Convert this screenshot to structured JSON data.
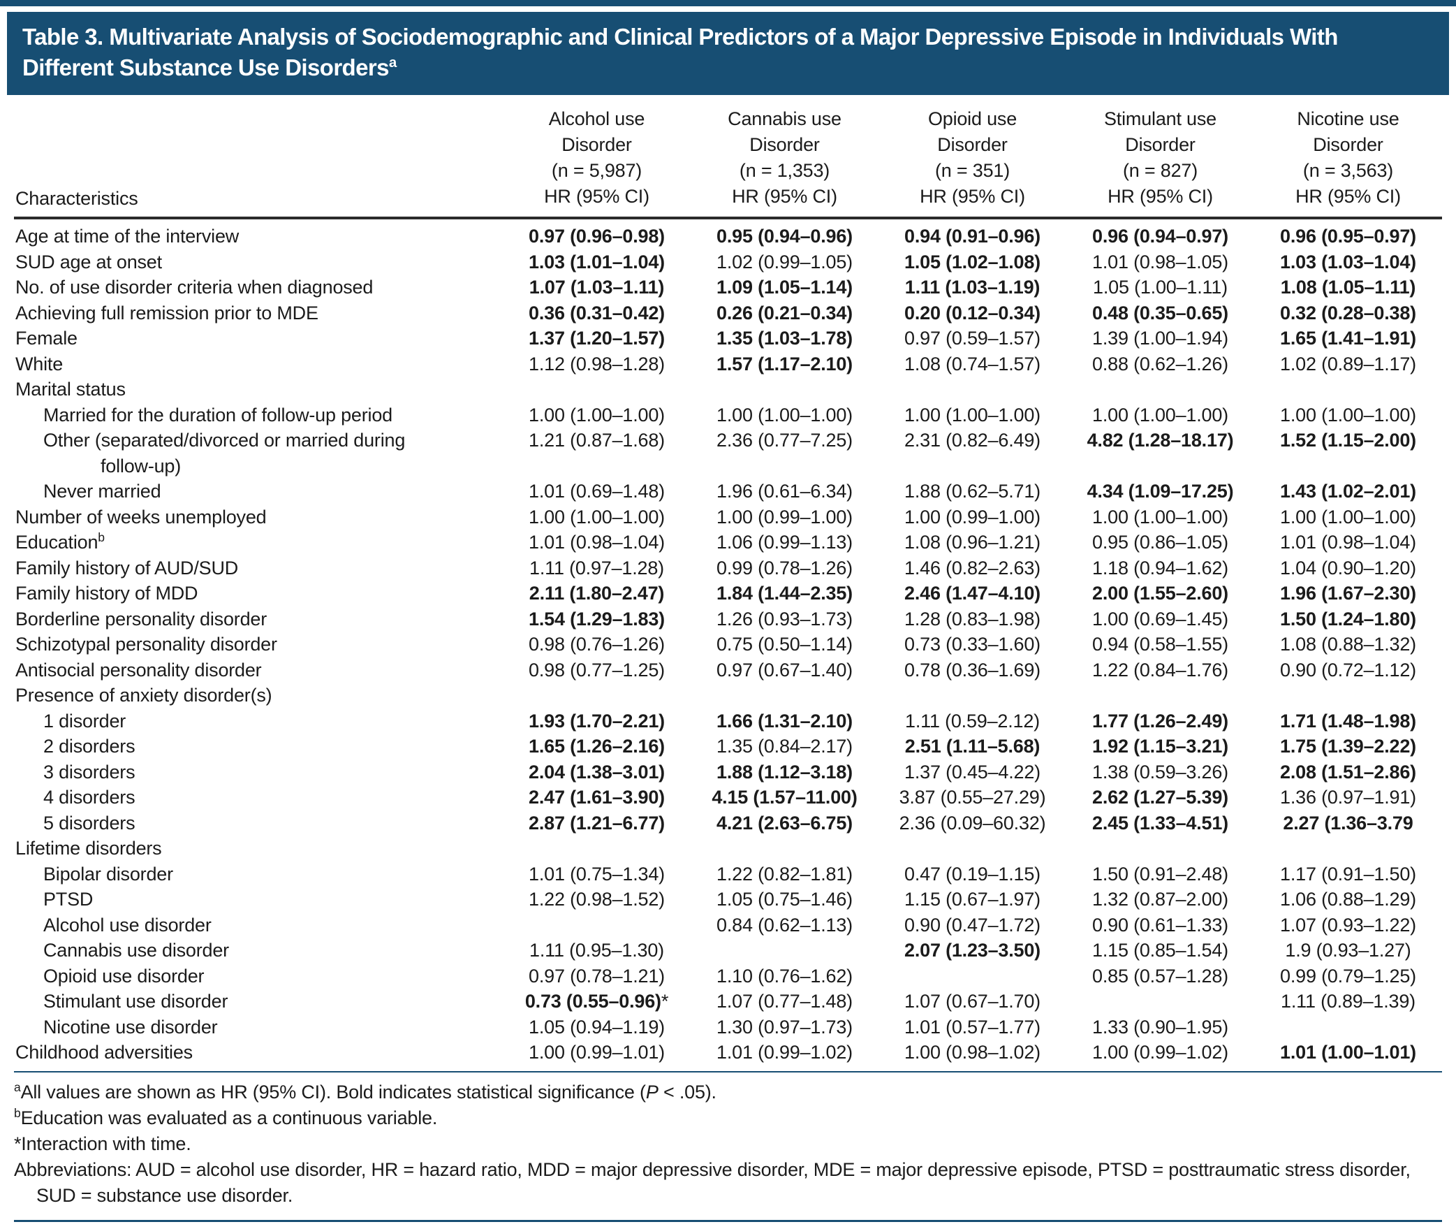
{
  "title": {
    "text": "Table 3. Multivariate Analysis of Sociodemographic and Clinical Predictors of a Major Depressive Episode in Individuals With Different Substance Use Disorders",
    "superscript": "a"
  },
  "table": {
    "characteristics_header": "Characteristics",
    "measure_label": "HR (95% CI)",
    "columns": [
      {
        "line1": "Alcohol use",
        "line2": "Disorder",
        "n": "(n = 5,987)",
        "measure": "HR (95% CI)"
      },
      {
        "line1": "Cannabis use",
        "line2": "Disorder",
        "n": "(n = 1,353)",
        "measure": "HR (95% CI)"
      },
      {
        "line1": "Opioid use",
        "line2": "Disorder",
        "n": "(n = 351)",
        "measure": "HR (95% CI)"
      },
      {
        "line1": "Stimulant use",
        "line2": "Disorder",
        "n": "(n = 827)",
        "measure": "HR (95% CI)"
      },
      {
        "line1": "Nicotine use",
        "line2": "Disorder",
        "n": "(n = 3,563)",
        "measure": "HR (95% CI)"
      }
    ],
    "rows": [
      {
        "label": "Age at time of the interview",
        "indent": 0,
        "cells": [
          {
            "t": "0.97 (0.96–0.98)",
            "b": true
          },
          {
            "t": "0.95 (0.94–0.96)",
            "b": true
          },
          {
            "t": "0.94 (0.91–0.96)",
            "b": true
          },
          {
            "t": "0.96 (0.94–0.97)",
            "b": true
          },
          {
            "t": "0.96 (0.95–0.97)",
            "b": true
          }
        ]
      },
      {
        "label": "SUD age at onset",
        "indent": 0,
        "cells": [
          {
            "t": "1.03 (1.01–1.04)",
            "b": true
          },
          {
            "t": "1.02 (0.99–1.05)",
            "b": false
          },
          {
            "t": "1.05 (1.02–1.08)",
            "b": true
          },
          {
            "t": "1.01 (0.98–1.05)",
            "b": false
          },
          {
            "t": "1.03 (1.03–1.04)",
            "b": true
          }
        ]
      },
      {
        "label": "No. of use disorder criteria when diagnosed",
        "indent": 0,
        "cells": [
          {
            "t": "1.07 (1.03–1.11)",
            "b": true
          },
          {
            "t": "1.09 (1.05–1.14)",
            "b": true
          },
          {
            "t": "1.11 (1.03–1.19)",
            "b": true
          },
          {
            "t": "1.05 (1.00–1.11)",
            "b": false
          },
          {
            "t": "1.08 (1.05–1.11)",
            "b": true
          }
        ]
      },
      {
        "label": "Achieving full remission prior to MDE",
        "indent": 0,
        "cells": [
          {
            "t": "0.36 (0.31–0.42)",
            "b": true
          },
          {
            "t": "0.26 (0.21–0.34)",
            "b": true
          },
          {
            "t": "0.20 (0.12–0.34)",
            "b": true
          },
          {
            "t": "0.48 (0.35–0.65)",
            "b": true
          },
          {
            "t": "0.32 (0.28–0.38)",
            "b": true
          }
        ]
      },
      {
        "label": "Female",
        "indent": 0,
        "cells": [
          {
            "t": "1.37 (1.20–1.57)",
            "b": true
          },
          {
            "t": "1.35 (1.03–1.78)",
            "b": true
          },
          {
            "t": "0.97 (0.59–1.57)",
            "b": false
          },
          {
            "t": "1.39 (1.00–1.94)",
            "b": false
          },
          {
            "t": "1.65 (1.41–1.91)",
            "b": true
          }
        ]
      },
      {
        "label": "White",
        "indent": 0,
        "cells": [
          {
            "t": "1.12 (0.98–1.28)",
            "b": false
          },
          {
            "t": "1.57 (1.17–2.10)",
            "b": true
          },
          {
            "t": "1.08 (0.74–1.57)",
            "b": false
          },
          {
            "t": "0.88 (0.62–1.26)",
            "b": false
          },
          {
            "t": "1.02 (0.89–1.17)",
            "b": false
          }
        ]
      },
      {
        "label": "Marital status",
        "indent": 0,
        "section": true,
        "cells": []
      },
      {
        "label": "Married for the duration of follow-up period",
        "indent": 1,
        "cells": [
          {
            "t": "1.00 (1.00–1.00)",
            "b": false
          },
          {
            "t": "1.00 (1.00–1.00)",
            "b": false
          },
          {
            "t": "1.00 (1.00–1.00)",
            "b": false
          },
          {
            "t": "1.00 (1.00–1.00)",
            "b": false
          },
          {
            "t": "1.00 (1.00–1.00)",
            "b": false
          }
        ]
      },
      {
        "label": "Other (separated/divorced or married during",
        "label_line2": "follow-up)",
        "indent": 1,
        "cells": [
          {
            "t": "1.21 (0.87–1.68)",
            "b": false
          },
          {
            "t": "2.36 (0.77–7.25)",
            "b": false
          },
          {
            "t": "2.31 (0.82–6.49)",
            "b": false
          },
          {
            "t": "4.82 (1.28–18.17)",
            "b": true
          },
          {
            "t": "1.52 (1.15–2.00)",
            "b": true
          }
        ]
      },
      {
        "label": "Never married",
        "indent": 1,
        "cells": [
          {
            "t": "1.01 (0.69–1.48)",
            "b": false
          },
          {
            "t": "1.96 (0.61–6.34)",
            "b": false
          },
          {
            "t": "1.88 (0.62–5.71)",
            "b": false
          },
          {
            "t": "4.34 (1.09–17.25)",
            "b": true
          },
          {
            "t": "1.43 (1.02–2.01)",
            "b": true
          }
        ]
      },
      {
        "label": "Number of weeks unemployed",
        "indent": 0,
        "cells": [
          {
            "t": "1.00 (1.00–1.00)",
            "b": false
          },
          {
            "t": "1.00 (0.99–1.00)",
            "b": false
          },
          {
            "t": "1.00 (0.99–1.00)",
            "b": false
          },
          {
            "t": "1.00 (1.00–1.00)",
            "b": false
          },
          {
            "t": "1.00 (1.00–1.00)",
            "b": false
          }
        ]
      },
      {
        "label": "Education",
        "label_sup": "b",
        "indent": 0,
        "cells": [
          {
            "t": "1.01 (0.98–1.04)",
            "b": false
          },
          {
            "t": "1.06 (0.99–1.13)",
            "b": false
          },
          {
            "t": "1.08 (0.96–1.21)",
            "b": false
          },
          {
            "t": "0.95 (0.86–1.05)",
            "b": false
          },
          {
            "t": "1.01 (0.98–1.04)",
            "b": false
          }
        ]
      },
      {
        "label": "Family history of AUD/SUD",
        "indent": 0,
        "cells": [
          {
            "t": "1.11 (0.97–1.28)",
            "b": false
          },
          {
            "t": "0.99 (0.78–1.26)",
            "b": false
          },
          {
            "t": "1.46 (0.82–2.63)",
            "b": false
          },
          {
            "t": "1.18 (0.94–1.62)",
            "b": false
          },
          {
            "t": "1.04 (0.90–1.20)",
            "b": false
          }
        ]
      },
      {
        "label": "Family history of MDD",
        "indent": 0,
        "cells": [
          {
            "t": "2.11 (1.80–2.47)",
            "b": true
          },
          {
            "t": "1.84 (1.44–2.35)",
            "b": true
          },
          {
            "t": "2.46 (1.47–4.10)",
            "b": true
          },
          {
            "t": "2.00 (1.55–2.60)",
            "b": true
          },
          {
            "t": "1.96 (1.67–2.30)",
            "b": true
          }
        ]
      },
      {
        "label": "Borderline personality disorder",
        "indent": 0,
        "cells": [
          {
            "t": "1.54 (1.29–1.83)",
            "b": true
          },
          {
            "t": "1.26 (0.93–1.73)",
            "b": false
          },
          {
            "t": "1.28 (0.83–1.98)",
            "b": false
          },
          {
            "t": "1.00 (0.69–1.45)",
            "b": false
          },
          {
            "t": "1.50 (1.24–1.80)",
            "b": true
          }
        ]
      },
      {
        "label": "Schizotypal personality disorder",
        "indent": 0,
        "cells": [
          {
            "t": "0.98 (0.76–1.26)",
            "b": false
          },
          {
            "t": "0.75 (0.50–1.14)",
            "b": false
          },
          {
            "t": "0.73 (0.33–1.60)",
            "b": false
          },
          {
            "t": "0.94 (0.58–1.55)",
            "b": false
          },
          {
            "t": "1.08 (0.88–1.32)",
            "b": false
          }
        ]
      },
      {
        "label": "Antisocial personality disorder",
        "indent": 0,
        "cells": [
          {
            "t": "0.98 (0.77–1.25)",
            "b": false
          },
          {
            "t": "0.97 (0.67–1.40)",
            "b": false
          },
          {
            "t": "0.78 (0.36–1.69)",
            "b": false
          },
          {
            "t": "1.22 (0.84–1.76)",
            "b": false
          },
          {
            "t": "0.90 (0.72–1.12)",
            "b": false
          }
        ]
      },
      {
        "label": "Presence of anxiety disorder(s)",
        "indent": 0,
        "section": true,
        "cells": []
      },
      {
        "label": "1 disorder",
        "indent": 1,
        "cells": [
          {
            "t": "1.93 (1.70–2.21)",
            "b": true
          },
          {
            "t": "1.66 (1.31–2.10)",
            "b": true
          },
          {
            "t": "1.11 (0.59–2.12)",
            "b": false
          },
          {
            "t": "1.77 (1.26–2.49)",
            "b": true
          },
          {
            "t": "1.71 (1.48–1.98)",
            "b": true
          }
        ]
      },
      {
        "label": "2 disorders",
        "indent": 1,
        "cells": [
          {
            "t": "1.65 (1.26–2.16)",
            "b": true
          },
          {
            "t": "1.35 (0.84–2.17)",
            "b": false
          },
          {
            "t": "2.51 (1.11–5.68)",
            "b": true
          },
          {
            "t": "1.92 (1.15–3.21)",
            "b": true
          },
          {
            "t": "1.75 (1.39–2.22)",
            "b": true
          }
        ]
      },
      {
        "label": "3 disorders",
        "indent": 1,
        "cells": [
          {
            "t": "2.04 (1.38–3.01)",
            "b": true
          },
          {
            "t": "1.88 (1.12–3.18)",
            "b": true
          },
          {
            "t": "1.37 (0.45–4.22)",
            "b": false
          },
          {
            "t": "1.38 (0.59–3.26)",
            "b": false
          },
          {
            "t": "2.08 (1.51–2.86)",
            "b": true
          }
        ]
      },
      {
        "label": "4 disorders",
        "indent": 1,
        "cells": [
          {
            "t": "2.47 (1.61–3.90)",
            "b": true
          },
          {
            "t": "4.15 (1.57–11.00)",
            "b": true
          },
          {
            "t": "3.87 (0.55–27.29)",
            "b": false
          },
          {
            "t": "2.62 (1.27–5.39)",
            "b": true
          },
          {
            "t": "1.36 (0.97–1.91)",
            "b": false
          }
        ]
      },
      {
        "label": "5 disorders",
        "indent": 1,
        "cells": [
          {
            "t": "2.87 (1.21–6.77)",
            "b": true
          },
          {
            "t": "4.21 (2.63–6.75)",
            "b": true
          },
          {
            "t": "2.36 (0.09–60.32)",
            "b": false
          },
          {
            "t": "2.45 (1.33–4.51)",
            "b": true
          },
          {
            "t": "2.27 (1.36–3.79",
            "b": true
          }
        ]
      },
      {
        "label": "Lifetime disorders",
        "indent": 0,
        "section": true,
        "cells": []
      },
      {
        "label": "Bipolar disorder",
        "indent": 1,
        "cells": [
          {
            "t": "1.01 (0.75–1.34)",
            "b": false
          },
          {
            "t": "1.22 (0.82–1.81)",
            "b": false
          },
          {
            "t": "0.47 (0.19–1.15)",
            "b": false
          },
          {
            "t": "1.50 (0.91–2.48)",
            "b": false
          },
          {
            "t": "1.17 (0.91–1.50)",
            "b": false
          }
        ]
      },
      {
        "label": "PTSD",
        "indent": 1,
        "cells": [
          {
            "t": "1.22 (0.98–1.52)",
            "b": false
          },
          {
            "t": "1.05 (0.75–1.46)",
            "b": false
          },
          {
            "t": "1.15 (0.67–1.97)",
            "b": false
          },
          {
            "t": "1.32 (0.87–2.00)",
            "b": false
          },
          {
            "t": "1.06 (0.88–1.29)",
            "b": false
          }
        ]
      },
      {
        "label": "Alcohol use disorder",
        "indent": 1,
        "cells": [
          {
            "t": "",
            "b": false
          },
          {
            "t": "0.84 (0.62–1.13)",
            "b": false
          },
          {
            "t": "0.90 (0.47–1.72)",
            "b": false
          },
          {
            "t": "0.90 (0.61–1.33)",
            "b": false
          },
          {
            "t": "1.07 (0.93–1.22)",
            "b": false
          }
        ]
      },
      {
        "label": "Cannabis use disorder",
        "indent": 1,
        "cells": [
          {
            "t": "1.11 (0.95–1.30)",
            "b": false
          },
          {
            "t": "",
            "b": false
          },
          {
            "t": "2.07 (1.23–3.50)",
            "b": true
          },
          {
            "t": "1.15 (0.85–1.54)",
            "b": false
          },
          {
            "t": "1.9 (0.93–1.27)",
            "b": false
          }
        ]
      },
      {
        "label": "Opioid use disorder",
        "indent": 1,
        "cells": [
          {
            "t": "0.97 (0.78–1.21)",
            "b": false
          },
          {
            "t": "1.10 (0.76–1.62)",
            "b": false
          },
          {
            "t": "",
            "b": false
          },
          {
            "t": "0.85 (0.57–1.28)",
            "b": false
          },
          {
            "t": "0.99 (0.79–1.25)",
            "b": false
          }
        ]
      },
      {
        "label": "Stimulant use disorder",
        "indent": 1,
        "cells": [
          {
            "t": "0.73 (0.55–0.96)",
            "b": true,
            "suffix": "*"
          },
          {
            "t": "1.07 (0.77–1.48)",
            "b": false
          },
          {
            "t": "1.07 (0.67–1.70)",
            "b": false
          },
          {
            "t": "",
            "b": false
          },
          {
            "t": "1.11 (0.89–1.39)",
            "b": false
          }
        ]
      },
      {
        "label": "Nicotine use disorder",
        "indent": 1,
        "cells": [
          {
            "t": "1.05 (0.94–1.19)",
            "b": false
          },
          {
            "t": "1.30 (0.97–1.73)",
            "b": false
          },
          {
            "t": "1.01 (0.57–1.77)",
            "b": false
          },
          {
            "t": "1.33 (0.90–1.95)",
            "b": false
          },
          {
            "t": "",
            "b": false
          }
        ]
      },
      {
        "label": "Childhood adversities",
        "indent": 0,
        "cells": [
          {
            "t": "1.00 (0.99–1.01)",
            "b": false
          },
          {
            "t": "1.01 (0.99–1.02)",
            "b": false
          },
          {
            "t": "1.00 (0.98–1.02)",
            "b": false
          },
          {
            "t": "1.00 (0.99–1.02)",
            "b": false
          },
          {
            "t": "1.01 (1.00–1.01)",
            "b": true
          }
        ]
      }
    ]
  },
  "footnotes": [
    {
      "sup": "a",
      "parts": [
        {
          "t": "All values are shown as HR (95% CI). Bold indicates statistical significance ("
        },
        {
          "t": "P",
          "italic": true
        },
        {
          "t": " < .05)."
        }
      ]
    },
    {
      "sup": "b",
      "parts": [
        {
          "t": "Education was evaluated as a continuous variable."
        }
      ]
    },
    {
      "sup": "",
      "parts": [
        {
          "t": "*Interaction with time."
        }
      ]
    },
    {
      "sup": "",
      "hanging": true,
      "parts": [
        {
          "t": "Abbreviations: AUD = alcohol use disorder, HR = hazard ratio, MDD = major depressive disorder, MDE = major depressive episode, PTSD = posttraumatic stress disorder, SUD = substance use disorder."
        }
      ]
    }
  ],
  "colors": {
    "banner_blue": "#174e73",
    "rule_dark": "#2b2b2b",
    "text": "#1b1b1b"
  }
}
